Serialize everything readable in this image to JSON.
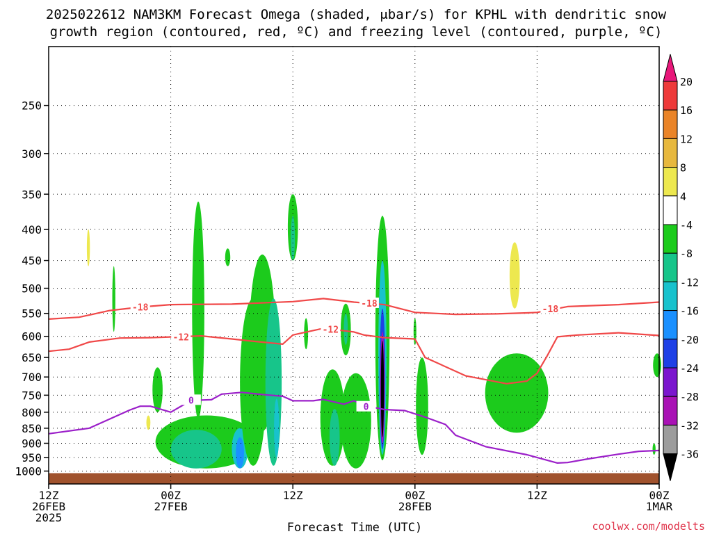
{
  "chart_data": {
    "type": "heatmap",
    "title_lines": [
      "2025022612 NAM3KM Forecast Omega (shaded, μbar/s) for KPHL with dendritic snow",
      "growth region (contoured, red, ºC) and freezing level (contoured, purple, ºC)"
    ],
    "xlabel": "Forecast Time (UTC)",
    "credit": "coolwx.com/modelts",
    "x_range_hours": [
      0,
      60
    ],
    "x_ticks": [
      {
        "hour": 0,
        "lines": [
          "12Z",
          "26FEB",
          "2025"
        ]
      },
      {
        "hour": 12,
        "lines": [
          "00Z",
          "27FEB"
        ]
      },
      {
        "hour": 24,
        "lines": [
          "12Z"
        ]
      },
      {
        "hour": 36,
        "lines": [
          "00Z",
          "28FEB"
        ]
      },
      {
        "hour": 48,
        "lines": [
          "12Z"
        ]
      },
      {
        "hour": 60,
        "lines": [
          "00Z",
          "1MAR"
        ]
      }
    ],
    "y_scale": "log",
    "y_range": [
      1050,
      200
    ],
    "y_ticks": [
      250,
      300,
      350,
      400,
      450,
      500,
      550,
      600,
      650,
      700,
      750,
      800,
      850,
      900,
      950,
      1000
    ],
    "grid": true,
    "ground_color": "#a0522d",
    "colorbar": {
      "labels": [
        "20",
        "16",
        "12",
        "8",
        "4",
        "-4",
        "-8",
        "-12",
        "-16",
        "-20",
        "-24",
        "-28",
        "-32",
        "-36"
      ],
      "colors": [
        "#e8177a",
        "#ee3a3a",
        "#ea8428",
        "#e7b83e",
        "#ede84f",
        "#ffffff",
        "#1ccb1c",
        "#17c58a",
        "#18c2cd",
        "#1a90ff",
        "#1e40e6",
        "#7b16ce",
        "#a912b5",
        "#9c9c9c",
        "#000000"
      ]
    },
    "contours": [
      {
        "label": "-18",
        "color": "#f04848",
        "points": [
          [
            0,
            562
          ],
          [
            3,
            558
          ],
          [
            6,
            544
          ],
          [
            9,
            537
          ],
          [
            12,
            532
          ],
          [
            18,
            531
          ],
          [
            24,
            526
          ],
          [
            27,
            520
          ],
          [
            30,
            527
          ],
          [
            33,
            532
          ],
          [
            36,
            548
          ],
          [
            40,
            552
          ],
          [
            44,
            551
          ],
          [
            47,
            549
          ],
          [
            48,
            548
          ],
          [
            51,
            536
          ],
          [
            56,
            532
          ],
          [
            60,
            527
          ]
        ]
      },
      {
        "label": "-12",
        "color": "#f04848",
        "points": [
          [
            0,
            635
          ],
          [
            2,
            630
          ],
          [
            4,
            613
          ],
          [
            7,
            604
          ],
          [
            10,
            603
          ],
          [
            15,
            599
          ],
          [
            18,
            606
          ],
          [
            20,
            611
          ],
          [
            23,
            618
          ],
          [
            24,
            597
          ],
          [
            25,
            592
          ],
          [
            27,
            582
          ],
          [
            30,
            590
          ],
          [
            31,
            597
          ],
          [
            33,
            603
          ],
          [
            36,
            606
          ],
          [
            37,
            650
          ],
          [
            41,
            697
          ],
          [
            45,
            718
          ],
          [
            47,
            711
          ],
          [
            48,
            690
          ],
          [
            49,
            646
          ],
          [
            50,
            601
          ],
          [
            52,
            597
          ],
          [
            56,
            592
          ],
          [
            60,
            598
          ]
        ]
      },
      {
        "label": "0",
        "color": "#9b1fc9",
        "points": [
          [
            0,
            868
          ],
          [
            4,
            850
          ],
          [
            8,
            793
          ],
          [
            9,
            782
          ],
          [
            10,
            782
          ],
          [
            12,
            800
          ],
          [
            14,
            765
          ],
          [
            16,
            763
          ],
          [
            17,
            747
          ],
          [
            19,
            742
          ],
          [
            21,
            748
          ],
          [
            23,
            753
          ],
          [
            24,
            766
          ],
          [
            26,
            766
          ],
          [
            27,
            762
          ],
          [
            29,
            776
          ],
          [
            30,
            766
          ],
          [
            31,
            780
          ],
          [
            33,
            792
          ],
          [
            35,
            795
          ],
          [
            37,
            815
          ],
          [
            39,
            838
          ],
          [
            40,
            873
          ],
          [
            43,
            912
          ],
          [
            47,
            940
          ],
          [
            50,
            970
          ],
          [
            51,
            968
          ],
          [
            53,
            955
          ],
          [
            56,
            938
          ],
          [
            58,
            928
          ],
          [
            60,
            925
          ]
        ]
      }
    ],
    "omega_regions": [
      {
        "band": "4",
        "cx": 0.2,
        "p_top": 270,
        "p_bot": 350,
        "rx": 0.45
      },
      {
        "band": "4",
        "cx": 3.9,
        "p_top": 295,
        "p_bot": 555,
        "rx": 1.0
      },
      {
        "band": "8",
        "cx": 3.9,
        "p_top": 400,
        "p_bot": 460,
        "rx": 0.15
      },
      {
        "band": "4",
        "cx": 10.8,
        "p_top": 240,
        "p_bot": 250,
        "rx": 0.1
      },
      {
        "band": "4",
        "cx": 7.6,
        "p_top": 760,
        "p_bot": 855,
        "rx": 1.8
      },
      {
        "band": "8",
        "cx": 9.8,
        "p_top": 810,
        "p_bot": 855,
        "rx": 0.2
      },
      {
        "band": "4",
        "cx": 9.8,
        "p_top": 880,
        "p_bot": 980,
        "rx": 0.3
      },
      {
        "band": "4",
        "cx": 6.1,
        "p_top": 450,
        "p_bot": 490,
        "rx": 0.1
      },
      {
        "band": "-4",
        "cx": 6.4,
        "p_top": 460,
        "p_bot": 590,
        "rx": 0.15
      },
      {
        "band": "-4",
        "cx": 10.7,
        "p_top": 675,
        "p_bot": 800,
        "rx": 0.5
      },
      {
        "band": "-4",
        "cx": 14.7,
        "p_top": 360,
        "p_bot": 820,
        "rx": 0.6
      },
      {
        "band": "-4",
        "cx": 17.6,
        "p_top": 430,
        "p_bot": 460,
        "rx": 0.25
      },
      {
        "band": "-4",
        "cx": 15.5,
        "p_top": 810,
        "p_bot": 990,
        "rx": 5.0
      },
      {
        "band": "-8",
        "cx": 14.5,
        "p_top": 855,
        "p_bot": 990,
        "rx": 2.5
      },
      {
        "band": "-12",
        "cx": 18.8,
        "p_top": 850,
        "p_bot": 990,
        "rx": 0.8
      },
      {
        "band": "-16",
        "cx": 18.8,
        "p_top": 880,
        "p_bot": 990,
        "rx": 0.4
      },
      {
        "band": "-4",
        "cx": 21.0,
        "p_top": 440,
        "p_bot": 860,
        "rx": 1.3
      },
      {
        "band": "-4",
        "cx": 20.1,
        "p_top": 520,
        "p_bot": 980,
        "rx": 1.3
      },
      {
        "band": "-8",
        "cx": 22.1,
        "p_top": 520,
        "p_bot": 980,
        "rx": 0.8
      },
      {
        "band": "-12",
        "cx": 22.4,
        "p_top": 760,
        "p_bot": 950,
        "rx": 0.25
      },
      {
        "band": "4",
        "cx": 23.0,
        "p_top": 355,
        "p_bot": 470,
        "rx": 0.8
      },
      {
        "band": "-4",
        "cx": 24.0,
        "p_top": 350,
        "p_bot": 450,
        "rx": 0.5
      },
      {
        "band": "-8",
        "cx": 24.0,
        "p_top": 380,
        "p_bot": 450,
        "rx": 0.2
      },
      {
        "band": "4",
        "cx": 24.2,
        "p_top": 610,
        "p_bot": 700,
        "rx": 0.6
      },
      {
        "band": "4",
        "cx": 26.4,
        "p_top": 370,
        "p_bot": 620,
        "rx": 1.2
      },
      {
        "band": "-4",
        "cx": 25.3,
        "p_top": 560,
        "p_bot": 630,
        "rx": 0.2
      },
      {
        "band": "-4",
        "cx": 27.9,
        "p_top": 680,
        "p_bot": 980,
        "rx": 1.2
      },
      {
        "band": "-8",
        "cx": 28.1,
        "p_top": 790,
        "p_bot": 980,
        "rx": 0.5
      },
      {
        "band": "-4",
        "cx": 29.2,
        "p_top": 530,
        "p_bot": 645,
        "rx": 0.5
      },
      {
        "band": "-8",
        "cx": 29.2,
        "p_top": 550,
        "p_bot": 620,
        "rx": 0.2
      },
      {
        "band": "4",
        "cx": 29.5,
        "p_top": 650,
        "p_bot": 760,
        "rx": 0.4
      },
      {
        "band": "-4",
        "cx": 30.2,
        "p_top": 690,
        "p_bot": 990,
        "rx": 1.5
      },
      {
        "band": "4",
        "cx": 31.2,
        "p_top": 590,
        "p_bot": 670,
        "rx": 0.4
      },
      {
        "band": "4",
        "cx": 32.3,
        "p_top": 340,
        "p_bot": 555,
        "rx": 0.4
      },
      {
        "band": "-4",
        "cx": 32.8,
        "p_top": 380,
        "p_bot": 960,
        "rx": 0.7
      },
      {
        "band": "-12",
        "cx": 32.8,
        "p_top": 450,
        "p_bot": 940,
        "rx": 0.4
      },
      {
        "band": "-20",
        "cx": 32.8,
        "p_top": 540,
        "p_bot": 920,
        "rx": 0.28
      },
      {
        "band": "-28",
        "cx": 32.8,
        "p_top": 590,
        "p_bot": 900,
        "rx": 0.22
      },
      {
        "band": "-36",
        "cx": 32.8,
        "p_top": 610,
        "p_bot": 880,
        "rx": 0.15
      },
      {
        "band": "-4",
        "cx": 36.0,
        "p_top": 560,
        "p_bot": 620,
        "rx": 0.1
      },
      {
        "band": "-4",
        "cx": 36.7,
        "p_top": 650,
        "p_bot": 940,
        "rx": 0.6
      },
      {
        "band": "4",
        "cx": 38.8,
        "p_top": 640,
        "p_bot": 720,
        "rx": 0.4
      },
      {
        "band": "4",
        "cx": 43.4,
        "p_top": 370,
        "p_bot": 610,
        "rx": 2.3
      },
      {
        "band": "4",
        "cx": 46.3,
        "p_top": 300,
        "p_bot": 570,
        "rx": 1.6
      },
      {
        "band": "8",
        "cx": 45.8,
        "p_top": 420,
        "p_bot": 540,
        "rx": 0.5
      },
      {
        "band": "-4",
        "cx": 46.0,
        "p_top": 640,
        "p_bot": 865,
        "rx": 3.1
      },
      {
        "band": "4",
        "cx": 52.3,
        "p_top": 760,
        "p_bot": 900,
        "rx": 1.2
      },
      {
        "band": "4",
        "cx": 52.8,
        "p_top": 280,
        "p_bot": 320,
        "rx": 0.3
      },
      {
        "band": "4",
        "cx": 53.4,
        "p_top": 370,
        "p_bot": 410,
        "rx": 0.2
      },
      {
        "band": "4",
        "cx": 50.5,
        "p_top": 300,
        "p_bot": 400,
        "rx": 0.9
      },
      {
        "band": "4",
        "cx": 59.1,
        "p_top": 330,
        "p_bot": 370,
        "rx": 0.1
      },
      {
        "band": "-4",
        "cx": 59.8,
        "p_top": 640,
        "p_bot": 700,
        "rx": 0.4
      },
      {
        "band": "-4",
        "cx": 59.5,
        "p_top": 900,
        "p_bot": 940,
        "rx": 0.15
      }
    ]
  }
}
